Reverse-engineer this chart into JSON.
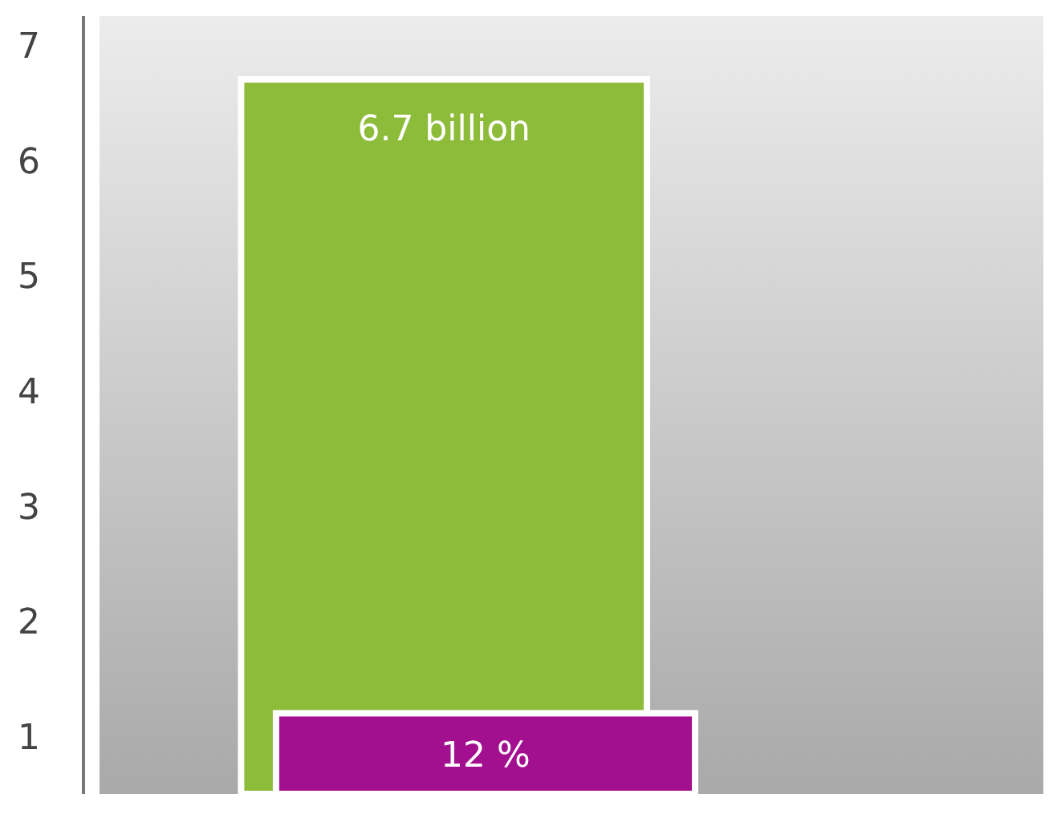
{
  "chart_data": {
    "type": "bar",
    "categories": [
      null
    ],
    "series": [
      {
        "color": "#8dbb3a",
        "values": [
          6.7
        ],
        "value_labels": [
          "6.7 billion"
        ]
      },
      {
        "color": "#a3108f",
        "values": [
          1.2
        ]
      }
    ],
    "annotations": [
      "12 %"
    ],
    "ylim": [
      0.5,
      7.25
    ],
    "yticks": [
      1,
      2,
      3,
      4,
      5,
      6,
      {
        "value": 7,
        "label": "7"
      }
    ],
    "tick_labels": "y",
    "grid": false
  }
}
